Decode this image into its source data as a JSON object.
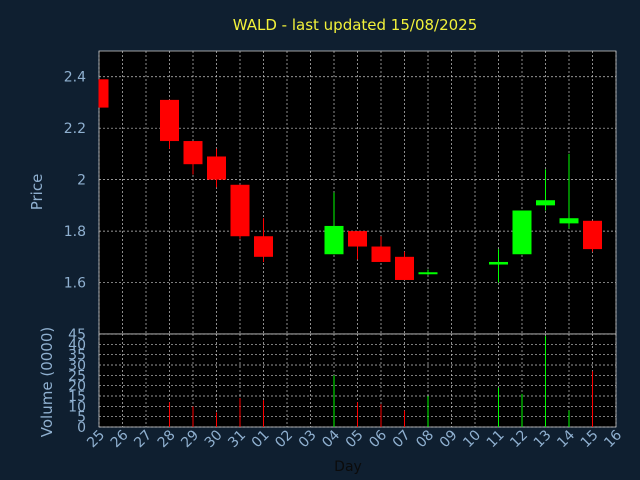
{
  "chart_data": [
    {
      "type": "candlestick",
      "title": "WALD - last updated 15/08/2025",
      "ylabel": "Price",
      "ylim": [
        1.4,
        2.5
      ],
      "yticks": [
        1.6,
        1.8,
        2.0,
        2.2,
        2.4
      ],
      "ytick_labels": [
        "1.6",
        "1.8",
        "2",
        "2.2",
        "2.4"
      ],
      "grid": true,
      "colors": {
        "up": "#00ff00",
        "down": "#ff0000",
        "background": "#000000",
        "grid": "#c8c8c8"
      },
      "categories": [
        "25",
        "26",
        "27",
        "28",
        "29",
        "30",
        "31",
        "01",
        "02",
        "03",
        "04",
        "05",
        "06",
        "07",
        "08",
        "09",
        "10",
        "11",
        "12",
        "13",
        "14",
        "15",
        "16"
      ],
      "candles": [
        {
          "day": "25",
          "open": 2.39,
          "high": 2.39,
          "low": 2.28,
          "close": 2.28
        },
        {
          "day": "28",
          "open": 2.31,
          "high": 2.31,
          "low": 2.12,
          "close": 2.15
        },
        {
          "day": "29",
          "open": 2.15,
          "high": 2.15,
          "low": 2.02,
          "close": 2.06
        },
        {
          "day": "30",
          "open": 2.09,
          "high": 2.12,
          "low": 1.97,
          "close": 2.0
        },
        {
          "day": "31",
          "open": 1.98,
          "high": 1.98,
          "low": 1.77,
          "close": 1.78
        },
        {
          "day": "01",
          "open": 1.78,
          "high": 1.85,
          "low": 1.68,
          "close": 1.7
        },
        {
          "day": "04",
          "open": 1.71,
          "high": 1.95,
          "low": 1.71,
          "close": 1.82
        },
        {
          "day": "05",
          "open": 1.8,
          "high": 1.8,
          "low": 1.69,
          "close": 1.74
        },
        {
          "day": "06",
          "open": 1.74,
          "high": 1.78,
          "low": 1.68,
          "close": 1.68
        },
        {
          "day": "07",
          "open": 1.7,
          "high": 1.72,
          "low": 1.61,
          "close": 1.61
        },
        {
          "day": "08",
          "open": 1.64,
          "high": 1.65,
          "low": 1.63,
          "close": 1.64
        },
        {
          "day": "11",
          "open": 1.67,
          "high": 1.73,
          "low": 1.6,
          "close": 1.68
        },
        {
          "day": "12",
          "open": 1.71,
          "high": 1.88,
          "low": 1.71,
          "close": 1.88
        },
        {
          "day": "13",
          "open": 1.9,
          "high": 2.04,
          "low": 1.88,
          "close": 1.92
        },
        {
          "day": "14",
          "open": 1.83,
          "high": 2.1,
          "low": 1.81,
          "close": 1.85
        },
        {
          "day": "15",
          "open": 1.84,
          "high": 1.84,
          "low": 1.72,
          "close": 1.73
        }
      ]
    },
    {
      "type": "bar",
      "ylabel": "Volume (0000)",
      "xlabel": "Day",
      "ylim": [
        0,
        45
      ],
      "yticks": [
        0,
        5,
        10,
        15,
        20,
        25,
        30,
        35,
        40,
        45
      ],
      "ytick_labels": [
        "0",
        "5",
        "10",
        "15",
        "20",
        "25",
        "30",
        "35",
        "40",
        "45"
      ],
      "categories": [
        "25",
        "26",
        "27",
        "28",
        "29",
        "30",
        "31",
        "01",
        "02",
        "03",
        "04",
        "05",
        "06",
        "07",
        "08",
        "09",
        "10",
        "11",
        "12",
        "13",
        "14",
        "15",
        "16"
      ],
      "volumes": [
        {
          "day": "28",
          "value": 12,
          "dir": "down"
        },
        {
          "day": "29",
          "value": 10,
          "dir": "down"
        },
        {
          "day": "30",
          "value": 7,
          "dir": "down"
        },
        {
          "day": "31",
          "value": 14,
          "dir": "down"
        },
        {
          "day": "01",
          "value": 13,
          "dir": "down"
        },
        {
          "day": "04",
          "value": 25,
          "dir": "up"
        },
        {
          "day": "05",
          "value": 12,
          "dir": "down"
        },
        {
          "day": "06",
          "value": 11,
          "dir": "down"
        },
        {
          "day": "07",
          "value": 8,
          "dir": "down"
        },
        {
          "day": "08",
          "value": 15,
          "dir": "up"
        },
        {
          "day": "11",
          "value": 19,
          "dir": "up"
        },
        {
          "day": "12",
          "value": 16,
          "dir": "up"
        },
        {
          "day": "13",
          "value": 44,
          "dir": "up"
        },
        {
          "day": "14",
          "value": 8,
          "dir": "up"
        },
        {
          "day": "15",
          "value": 27,
          "dir": "down"
        }
      ]
    }
  ]
}
